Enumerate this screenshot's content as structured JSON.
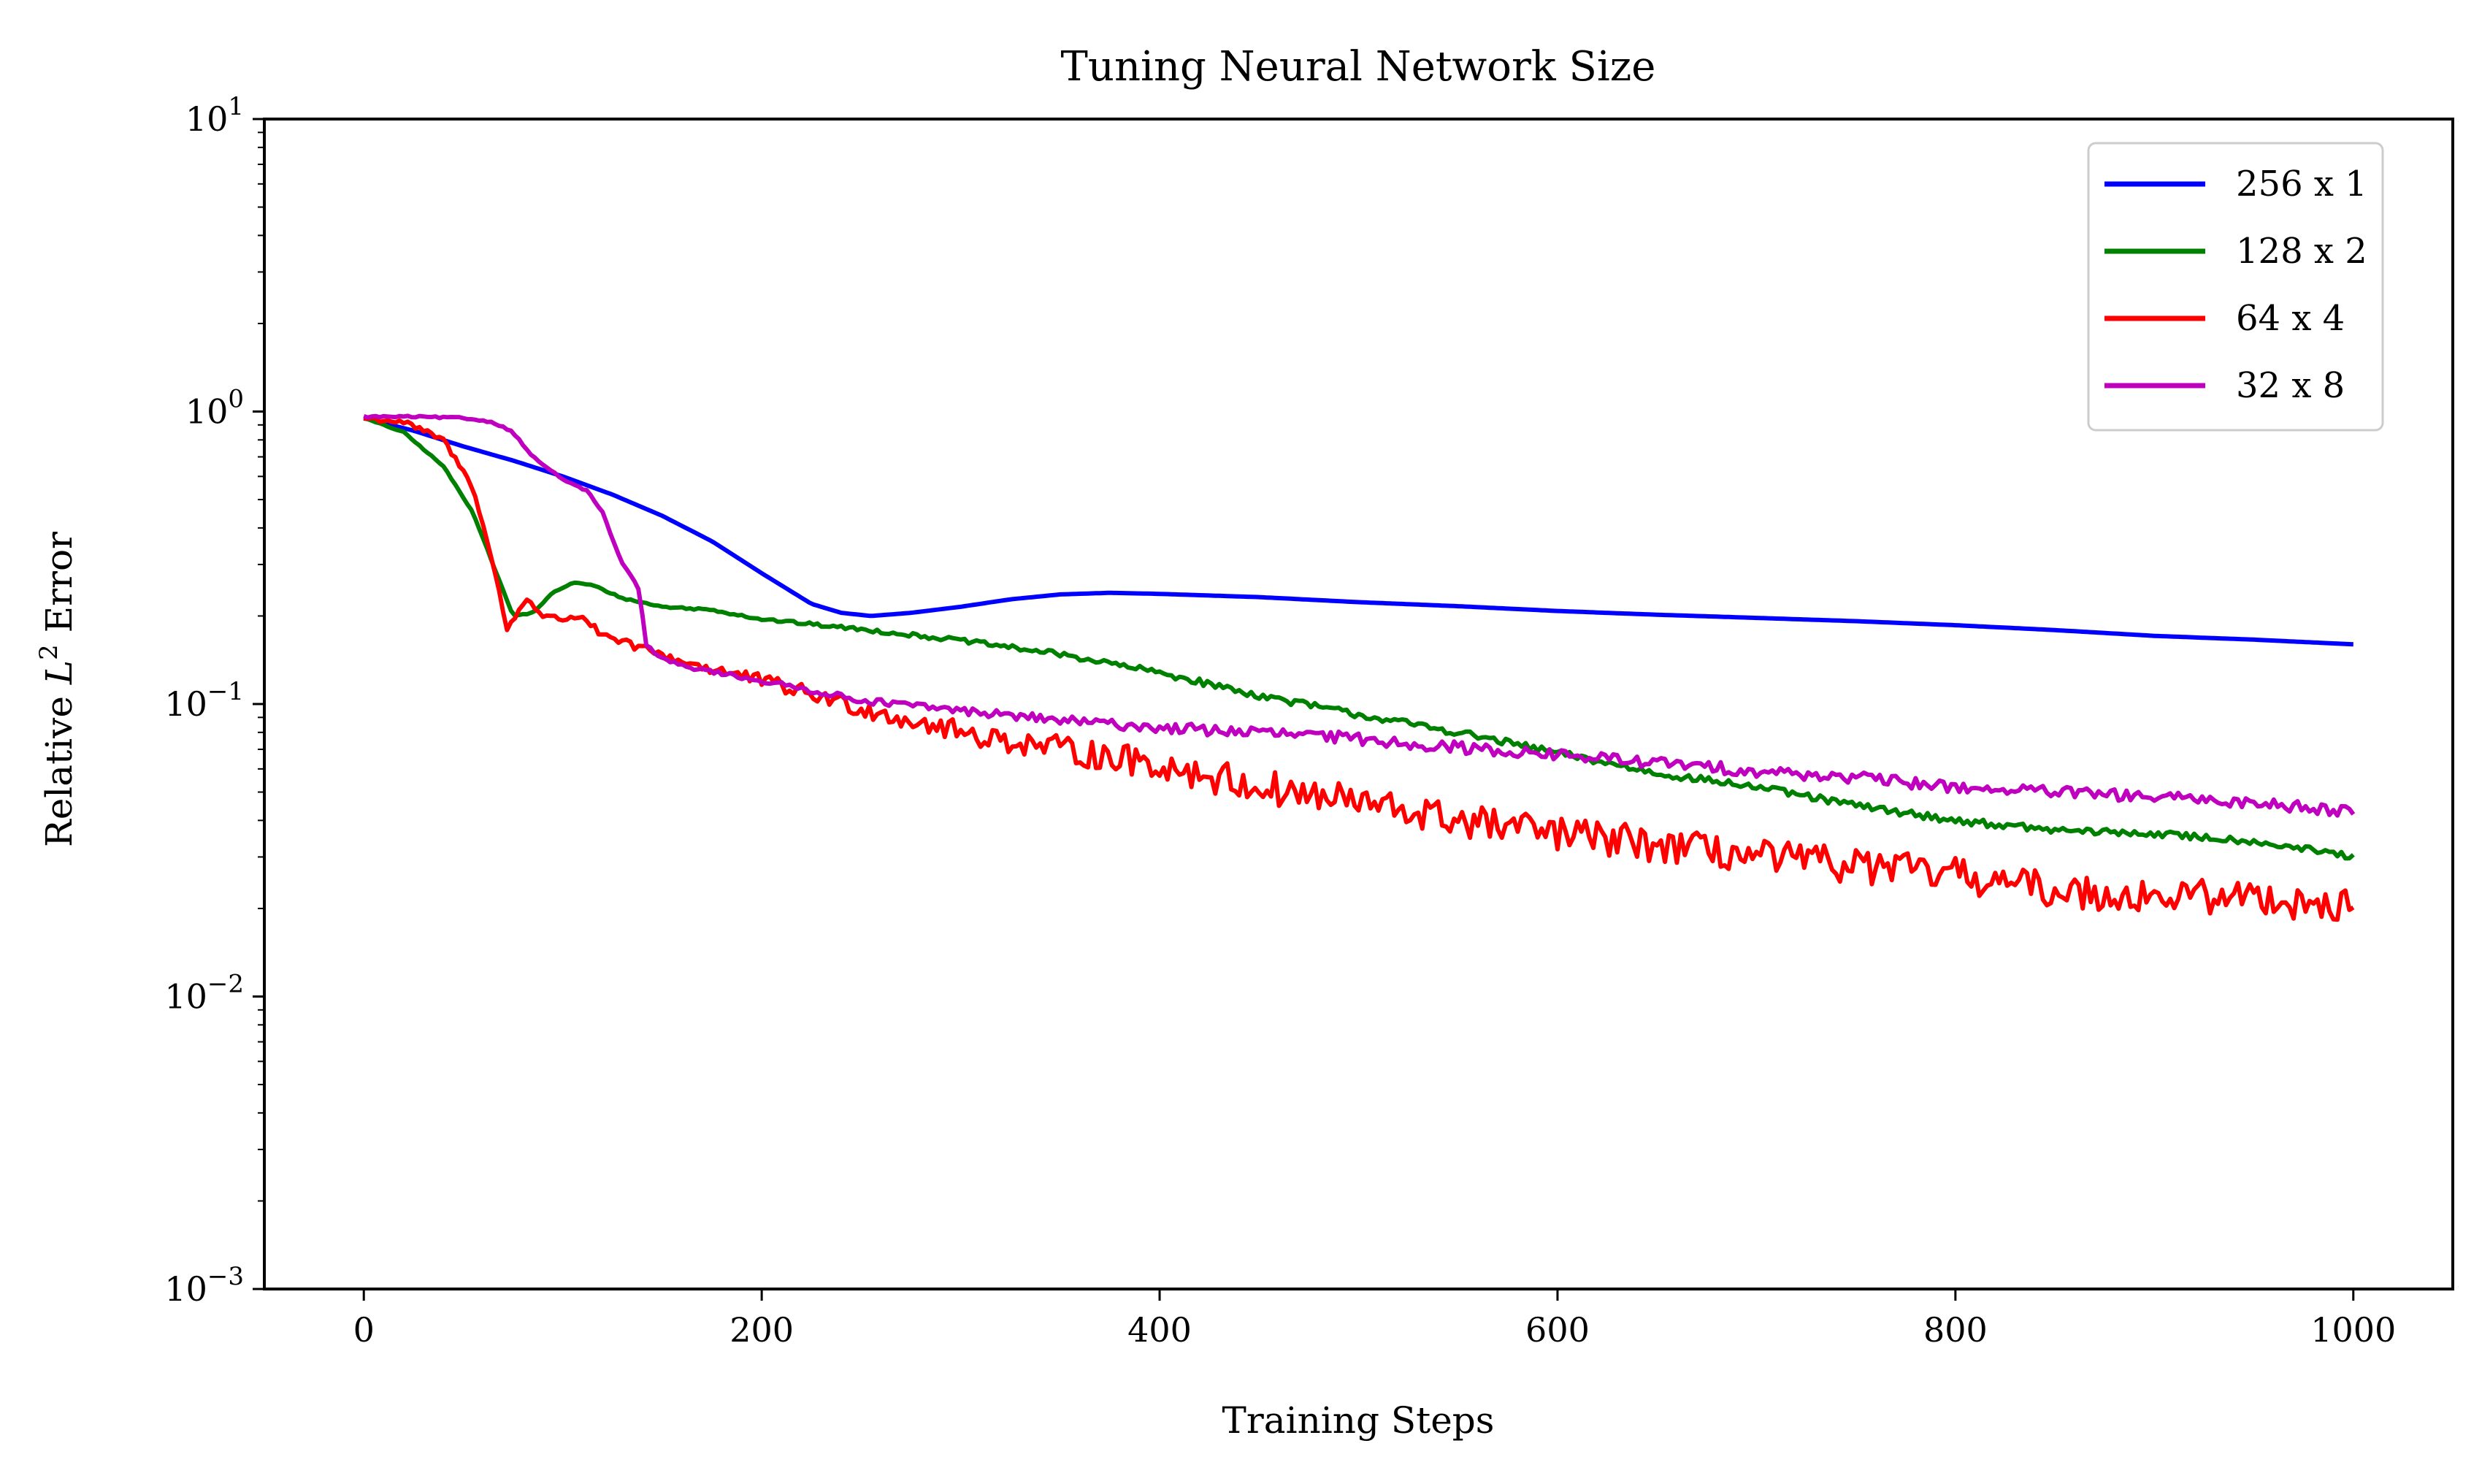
{
  "chart_data": {
    "type": "line",
    "title": "Tuning Neural Network Size",
    "xlabel": "Training Steps",
    "ylabel": "Relative L² Error",
    "ylabel_parts": {
      "pre": "Relative ",
      "var": "L",
      "sup": "2",
      "post": " Error"
    },
    "y_scale": "log",
    "xlim": [
      -50,
      1050
    ],
    "ylim": [
      0.001,
      10
    ],
    "x_ticks": [
      0,
      200,
      400,
      600,
      800,
      1000
    ],
    "x_tick_labels": [
      "0",
      "200",
      "400",
      "600",
      "800",
      "1000"
    ],
    "y_ticks": [
      {
        "value": 0.001,
        "base": "10",
        "exp": "−3"
      },
      {
        "value": 0.01,
        "base": "10",
        "exp": "−2"
      },
      {
        "value": 0.1,
        "base": "10",
        "exp": "−1"
      },
      {
        "value": 1,
        "base": "10",
        "exp": "0"
      },
      {
        "value": 10,
        "base": "10",
        "exp": "1"
      }
    ],
    "grid": false,
    "legend_position": "top-right",
    "series": [
      {
        "name": "256 x 1",
        "color": "#0000ff",
        "noise": 0.0,
        "points": [
          [
            0,
            0.95
          ],
          [
            25,
            0.86
          ],
          [
            50,
            0.76
          ],
          [
            75,
            0.68
          ],
          [
            100,
            0.6
          ],
          [
            125,
            0.52
          ],
          [
            150,
            0.44
          ],
          [
            175,
            0.36
          ],
          [
            200,
            0.28
          ],
          [
            225,
            0.22
          ],
          [
            240,
            0.205
          ],
          [
            255,
            0.2
          ],
          [
            275,
            0.205
          ],
          [
            300,
            0.215
          ],
          [
            325,
            0.228
          ],
          [
            350,
            0.237
          ],
          [
            375,
            0.24
          ],
          [
            400,
            0.238
          ],
          [
            450,
            0.232
          ],
          [
            500,
            0.223
          ],
          [
            550,
            0.216
          ],
          [
            600,
            0.208
          ],
          [
            650,
            0.202
          ],
          [
            700,
            0.197
          ],
          [
            750,
            0.192
          ],
          [
            800,
            0.186
          ],
          [
            850,
            0.179
          ],
          [
            900,
            0.171
          ],
          [
            950,
            0.166
          ],
          [
            1000,
            0.16
          ]
        ]
      },
      {
        "name": "128 x 2",
        "color": "#008000",
        "noise": 0.012,
        "points": [
          [
            0,
            0.95
          ],
          [
            20,
            0.85
          ],
          [
            40,
            0.65
          ],
          [
            55,
            0.45
          ],
          [
            65,
            0.3
          ],
          [
            75,
            0.2
          ],
          [
            85,
            0.205
          ],
          [
            95,
            0.24
          ],
          [
            105,
            0.26
          ],
          [
            115,
            0.255
          ],
          [
            130,
            0.23
          ],
          [
            150,
            0.215
          ],
          [
            175,
            0.21
          ],
          [
            200,
            0.195
          ],
          [
            250,
            0.18
          ],
          [
            300,
            0.165
          ],
          [
            350,
            0.148
          ],
          [
            400,
            0.128
          ],
          [
            450,
            0.107
          ],
          [
            500,
            0.092
          ],
          [
            550,
            0.08
          ],
          [
            600,
            0.068
          ],
          [
            650,
            0.058
          ],
          [
            700,
            0.052
          ],
          [
            750,
            0.045
          ],
          [
            800,
            0.04
          ],
          [
            850,
            0.037
          ],
          [
            900,
            0.036
          ],
          [
            950,
            0.034
          ],
          [
            1000,
            0.03
          ]
        ]
      },
      {
        "name": "64 x 4",
        "color": "#ff0000",
        "noise": 0.06,
        "points": [
          [
            0,
            0.95
          ],
          [
            20,
            0.92
          ],
          [
            40,
            0.8
          ],
          [
            55,
            0.55
          ],
          [
            65,
            0.3
          ],
          [
            72,
            0.18
          ],
          [
            82,
            0.23
          ],
          [
            90,
            0.2
          ],
          [
            100,
            0.195
          ],
          [
            110,
            0.2
          ],
          [
            120,
            0.17
          ],
          [
            140,
            0.155
          ],
          [
            160,
            0.14
          ],
          [
            200,
            0.12
          ],
          [
            250,
            0.097
          ],
          [
            300,
            0.08
          ],
          [
            350,
            0.07
          ],
          [
            400,
            0.062
          ],
          [
            450,
            0.052
          ],
          [
            500,
            0.046
          ],
          [
            550,
            0.04
          ],
          [
            600,
            0.036
          ],
          [
            650,
            0.033
          ],
          [
            700,
            0.03
          ],
          [
            750,
            0.028
          ],
          [
            800,
            0.026
          ],
          [
            850,
            0.023
          ],
          [
            900,
            0.022
          ],
          [
            950,
            0.022
          ],
          [
            1000,
            0.02
          ]
        ]
      },
      {
        "name": "32 x 8",
        "color": "#bf00bf",
        "noise": 0.02,
        "points": [
          [
            0,
            0.96
          ],
          [
            25,
            0.96
          ],
          [
            50,
            0.95
          ],
          [
            65,
            0.92
          ],
          [
            75,
            0.85
          ],
          [
            85,
            0.7
          ],
          [
            95,
            0.62
          ],
          [
            105,
            0.56
          ],
          [
            112,
            0.54
          ],
          [
            120,
            0.45
          ],
          [
            130,
            0.3
          ],
          [
            138,
            0.25
          ],
          [
            142,
            0.16
          ],
          [
            148,
            0.145
          ],
          [
            160,
            0.135
          ],
          [
            200,
            0.12
          ],
          [
            250,
            0.103
          ],
          [
            300,
            0.095
          ],
          [
            350,
            0.088
          ],
          [
            400,
            0.083
          ],
          [
            450,
            0.08
          ],
          [
            500,
            0.076
          ],
          [
            550,
            0.071
          ],
          [
            600,
            0.067
          ],
          [
            650,
            0.063
          ],
          [
            700,
            0.059
          ],
          [
            750,
            0.056
          ],
          [
            800,
            0.052
          ],
          [
            850,
            0.05
          ],
          [
            900,
            0.048
          ],
          [
            950,
            0.046
          ],
          [
            1000,
            0.043
          ]
        ]
      }
    ]
  }
}
